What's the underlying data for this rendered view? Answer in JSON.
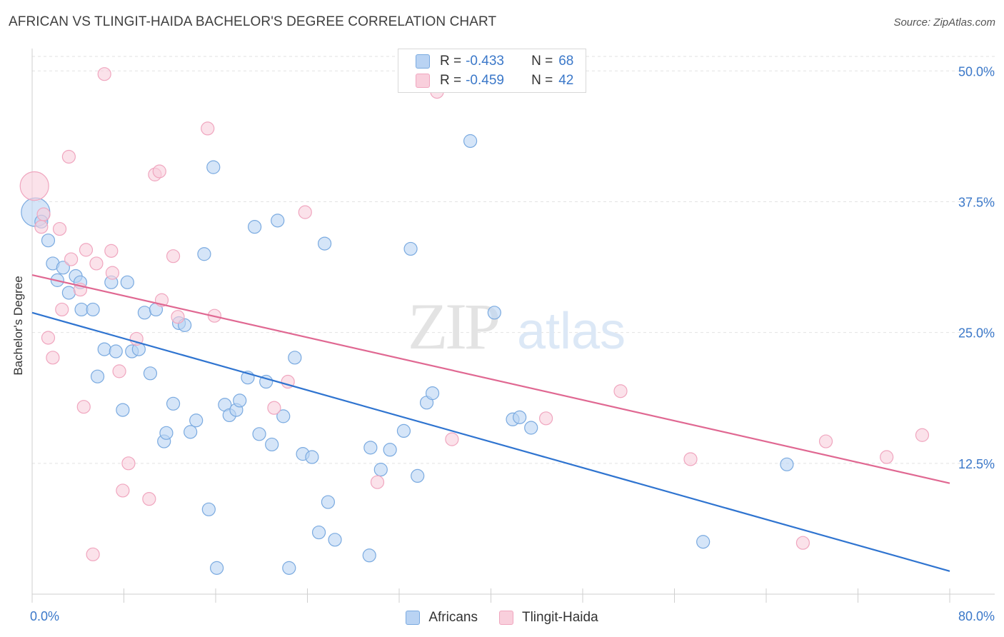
{
  "chart_data": {
    "type": "scatter",
    "title": "AFRICAN VS TLINGIT-HAIDA BACHELOR'S DEGREE CORRELATION CHART",
    "source": "Source: ZipAtlas.com",
    "ylabel": "Bachelor's Degree",
    "xlabel": "",
    "xlim": [
      0,
      80
    ],
    "ylim": [
      0,
      52
    ],
    "x_tick_labels": [
      "0.0%",
      "80.0%"
    ],
    "y_ticks": [
      12.5,
      25.0,
      37.5,
      50.0
    ],
    "y_tick_labels": [
      "12.5%",
      "25.0%",
      "37.5%",
      "50.0%"
    ],
    "watermark": {
      "part1": "ZIP",
      "part2": "atlas"
    },
    "legend": {
      "r_label": "R =",
      "n_label": "N =",
      "entries": [
        {
          "name": "Africans",
          "r": "-0.433",
          "n": "68"
        },
        {
          "name": "Tlingit-Haida",
          "r": "-0.459",
          "n": "42"
        }
      ]
    },
    "series": [
      {
        "name": "Africans",
        "color": "#7aaae0",
        "fill": "#b9d3f3",
        "line_color": "#2f74d0",
        "trend": {
          "x": [
            0,
            80
          ],
          "y": [
            26.9,
            2.2
          ]
        },
        "points": [
          [
            0.3,
            36.5
          ],
          [
            0.8,
            35.6
          ],
          [
            1.4,
            33.8
          ],
          [
            1.8,
            31.6
          ],
          [
            2.2,
            30.0
          ],
          [
            2.7,
            31.2
          ],
          [
            3.2,
            28.8
          ],
          [
            3.8,
            30.4
          ],
          [
            4.2,
            29.8
          ],
          [
            4.3,
            27.2
          ],
          [
            5.3,
            27.2
          ],
          [
            5.7,
            20.8
          ],
          [
            6.3,
            23.4
          ],
          [
            6.9,
            29.8
          ],
          [
            7.3,
            23.2
          ],
          [
            7.9,
            17.6
          ],
          [
            8.3,
            29.8
          ],
          [
            8.7,
            23.2
          ],
          [
            9.3,
            23.4
          ],
          [
            9.8,
            26.9
          ],
          [
            10.3,
            21.1
          ],
          [
            10.8,
            27.2
          ],
          [
            11.5,
            14.6
          ],
          [
            11.7,
            15.4
          ],
          [
            12.3,
            18.2
          ],
          [
            12.8,
            25.9
          ],
          [
            13.3,
            25.7
          ],
          [
            13.8,
            15.5
          ],
          [
            14.3,
            16.6
          ],
          [
            15.0,
            32.5
          ],
          [
            15.4,
            8.1
          ],
          [
            15.8,
            40.8
          ],
          [
            16.1,
            2.5
          ],
          [
            16.8,
            18.1
          ],
          [
            17.2,
            17.1
          ],
          [
            17.8,
            17.6
          ],
          [
            18.1,
            18.5
          ],
          [
            18.8,
            20.7
          ],
          [
            19.4,
            35.1
          ],
          [
            19.8,
            15.3
          ],
          [
            20.4,
            20.3
          ],
          [
            20.9,
            14.3
          ],
          [
            21.4,
            35.7
          ],
          [
            21.9,
            17.0
          ],
          [
            22.4,
            2.5
          ],
          [
            22.9,
            22.6
          ],
          [
            23.6,
            13.4
          ],
          [
            24.4,
            13.1
          ],
          [
            25.0,
            5.9
          ],
          [
            25.5,
            33.5
          ],
          [
            25.8,
            8.8
          ],
          [
            26.4,
            5.2
          ],
          [
            29.4,
            3.7
          ],
          [
            29.5,
            14.0
          ],
          [
            30.4,
            11.9
          ],
          [
            31.2,
            13.8
          ],
          [
            32.4,
            15.6
          ],
          [
            33.0,
            33.0
          ],
          [
            33.6,
            11.3
          ],
          [
            34.4,
            18.3
          ],
          [
            34.9,
            19.2
          ],
          [
            38.2,
            43.3
          ],
          [
            40.3,
            26.9
          ],
          [
            41.9,
            16.7
          ],
          [
            42.5,
            16.9
          ],
          [
            43.5,
            15.9
          ],
          [
            58.5,
            5.0
          ],
          [
            65.8,
            12.4
          ]
        ],
        "large_points": [
          [
            0.3,
            36.5
          ]
        ]
      },
      {
        "name": "Tlingit-Haida",
        "color": "#f0a6bf",
        "fill": "#f9cfdc",
        "line_color": "#e06892",
        "trend": {
          "x": [
            0,
            80
          ],
          "y": [
            30.5,
            10.6
          ]
        },
        "points": [
          [
            0.2,
            39.0
          ],
          [
            0.8,
            35.1
          ],
          [
            1.0,
            36.3
          ],
          [
            1.4,
            24.5
          ],
          [
            1.8,
            22.6
          ],
          [
            2.4,
            34.9
          ],
          [
            2.6,
            27.2
          ],
          [
            3.2,
            41.8
          ],
          [
            3.4,
            32.0
          ],
          [
            4.2,
            29.1
          ],
          [
            4.5,
            17.9
          ],
          [
            4.7,
            32.9
          ],
          [
            5.3,
            3.8
          ],
          [
            5.6,
            31.6
          ],
          [
            6.3,
            49.7
          ],
          [
            6.9,
            32.8
          ],
          [
            7.0,
            30.7
          ],
          [
            7.6,
            21.3
          ],
          [
            7.9,
            9.9
          ],
          [
            8.4,
            12.5
          ],
          [
            9.1,
            24.4
          ],
          [
            10.2,
            9.1
          ],
          [
            10.7,
            40.1
          ],
          [
            11.1,
            40.4
          ],
          [
            11.3,
            28.1
          ],
          [
            12.3,
            32.3
          ],
          [
            12.7,
            26.5
          ],
          [
            15.3,
            44.5
          ],
          [
            15.9,
            26.6
          ],
          [
            23.8,
            36.5
          ],
          [
            22.3,
            20.3
          ],
          [
            21.1,
            17.8
          ],
          [
            30.1,
            10.7
          ],
          [
            36.6,
            14.8
          ],
          [
            44.8,
            16.8
          ],
          [
            51.3,
            19.4
          ],
          [
            57.4,
            12.9
          ],
          [
            67.2,
            4.9
          ],
          [
            69.2,
            14.6
          ],
          [
            74.5,
            13.1
          ],
          [
            77.6,
            15.2
          ],
          [
            35.3,
            48.0
          ]
        ],
        "large_points": [
          [
            0.2,
            39.0
          ]
        ]
      }
    ]
  }
}
